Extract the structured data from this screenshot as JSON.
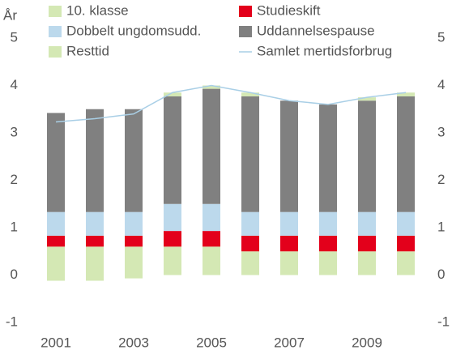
{
  "chart_data": {
    "type": "bar",
    "stacked": true,
    "ylabel": "År",
    "categories": [
      "2001",
      null,
      "2003",
      null,
      "2005",
      null,
      "2007",
      null,
      "2009",
      null
    ],
    "series": [
      {
        "name": "10. klasse",
        "color": "#d4e8b4",
        "values": [
          0.6,
          0.6,
          0.6,
          0.6,
          0.6,
          0.5,
          0.5,
          0.5,
          0.5,
          0.5
        ]
      },
      {
        "name": "Studieskift",
        "color": "#e3001b",
        "values": [
          0.23,
          0.23,
          0.23,
          0.33,
          0.33,
          0.33,
          0.33,
          0.33,
          0.33,
          0.33
        ]
      },
      {
        "name": "Dobbelt ungdomsudd.",
        "color": "#bcd9ec",
        "values": [
          0.5,
          0.5,
          0.5,
          0.57,
          0.57,
          0.5,
          0.5,
          0.5,
          0.5,
          0.5
        ]
      },
      {
        "name": "Uddannelsespause",
        "color": "#808080",
        "values": [
          2.09,
          2.17,
          2.17,
          2.27,
          2.43,
          2.44,
          2.35,
          2.27,
          2.35,
          2.44
        ]
      },
      {
        "name": "Resttid",
        "color": "#d4e8b4",
        "values": [
          -0.12,
          -0.12,
          -0.07,
          0.08,
          0.07,
          0.08,
          0,
          0,
          0.07,
          0.08
        ]
      },
      {
        "name": "Samlet mertidsforbrug",
        "type": "line",
        "color": "#a9cfe6",
        "values": [
          3.23,
          3.3,
          3.4,
          3.85,
          4.0,
          3.85,
          3.68,
          3.6,
          3.75,
          3.85
        ]
      }
    ],
    "ylim": [
      -1,
      5
    ],
    "yticks": [
      -1,
      0,
      1,
      2,
      3,
      4,
      5
    ],
    "y2lim": [
      -1,
      5
    ],
    "y2ticks": [
      -1,
      0,
      1,
      2,
      3,
      4,
      5
    ],
    "grid": false
  }
}
